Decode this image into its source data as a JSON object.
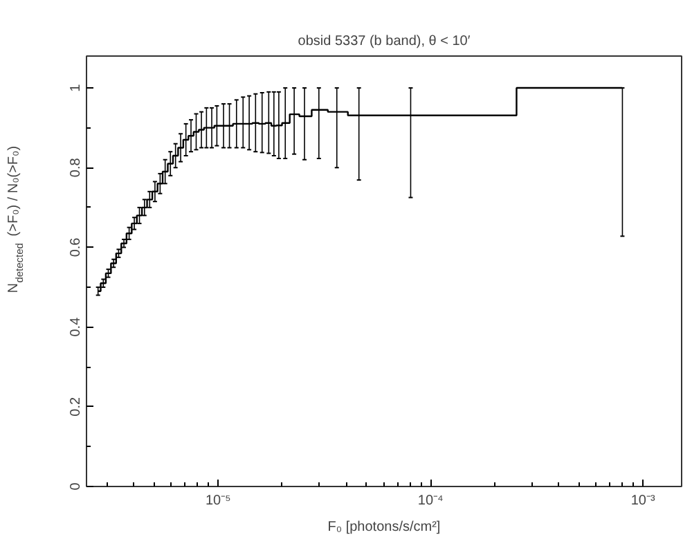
{
  "chart_data": {
    "type": "step",
    "title": "obsid 5337 (b band), θ < 10′",
    "xlabel": "F₀ [photons/s/cm²]",
    "ylabel": "N$_{detected}$(>F₀) / N₀(>F₀)",
    "log": "x",
    "grid": false,
    "marker": "none",
    "line_style": "solid",
    "xlim": [
      2.4e-06,
      0.00152
    ],
    "ylim": [
      0,
      1.08
    ],
    "xticks": [
      {
        "value": 1e-05,
        "label": "10⁻⁵"
      },
      {
        "value": 0.0001,
        "label": "10⁻⁴"
      },
      {
        "value": 0.001,
        "label": "10⁻³"
      }
    ],
    "yticks": [
      0,
      0.2,
      0.4,
      0.6,
      0.8,
      1
    ],
    "x": [
      2.72e-06,
      2.88e-06,
      3.04e-06,
      3.22e-06,
      3.4e-06,
      3.6e-06,
      3.81e-06,
      4.03e-06,
      4.26e-06,
      4.5e-06,
      4.76e-06,
      5.04e-06,
      5.33e-06,
      5.63e-06,
      5.96e-06,
      6.3e-06,
      6.66e-06,
      7.05e-06,
      7.45e-06,
      7.88e-06,
      8.34e-06,
      8.81e-06,
      9.33e-06,
      9.86e-06,
      1.06e-05,
      1.13e-05,
      1.22e-05,
      1.31e-05,
      1.4e-05,
      1.5e-05,
      1.61e-05,
      1.73e-05,
      1.83e-05,
      1.93e-05,
      2.07e-05,
      2.28e-05,
      2.55e-05,
      2.98e-05,
      3.62e-05,
      4.6e-05,
      8.06e-05,
      0.0008
    ],
    "series": [
      {
        "color": "#000000",
        "values": [
          0.49,
          0.51,
          0.535,
          0.56,
          0.585,
          0.61,
          0.635,
          0.66,
          0.68,
          0.7,
          0.72,
          0.74,
          0.76,
          0.79,
          0.81,
          0.83,
          0.85,
          0.87,
          0.88,
          0.89,
          0.895,
          0.9,
          0.9,
          0.905,
          0.905,
          0.905,
          0.91,
          0.91,
          0.91,
          0.912,
          0.91,
          0.912,
          0.905,
          0.906,
          0.912,
          0.934,
          0.929,
          0.945,
          0.94,
          0.931,
          0.931,
          1.0
        ],
        "errors": [
          0.01,
          0.01,
          0.01,
          0.01,
          0.01,
          0.01,
          0.015,
          0.015,
          0.02,
          0.02,
          0.02,
          0.025,
          0.025,
          0.03,
          0.03,
          0.03,
          0.035,
          0.04,
          0.04,
          0.045,
          0.045,
          0.05,
          0.05,
          0.05,
          0.055,
          0.055,
          0.06,
          [
            0.85,
            0.977
          ],
          [
            0.845,
            0.98
          ],
          [
            0.84,
            0.985
          ],
          [
            0.838,
            0.988
          ],
          [
            0.836,
            0.99
          ],
          [
            0.83,
            0.99
          ],
          [
            0.823,
            0.99
          ],
          [
            0.823,
            1.0
          ],
          [
            0.834,
            1.0
          ],
          [
            0.82,
            1.0
          ],
          [
            0.823,
            1.0
          ],
          [
            0.8,
            1.0
          ],
          [
            0.769,
            1.0
          ],
          [
            0.725,
            1.0
          ],
          [
            0.628,
            1.0
          ]
        ]
      }
    ]
  }
}
